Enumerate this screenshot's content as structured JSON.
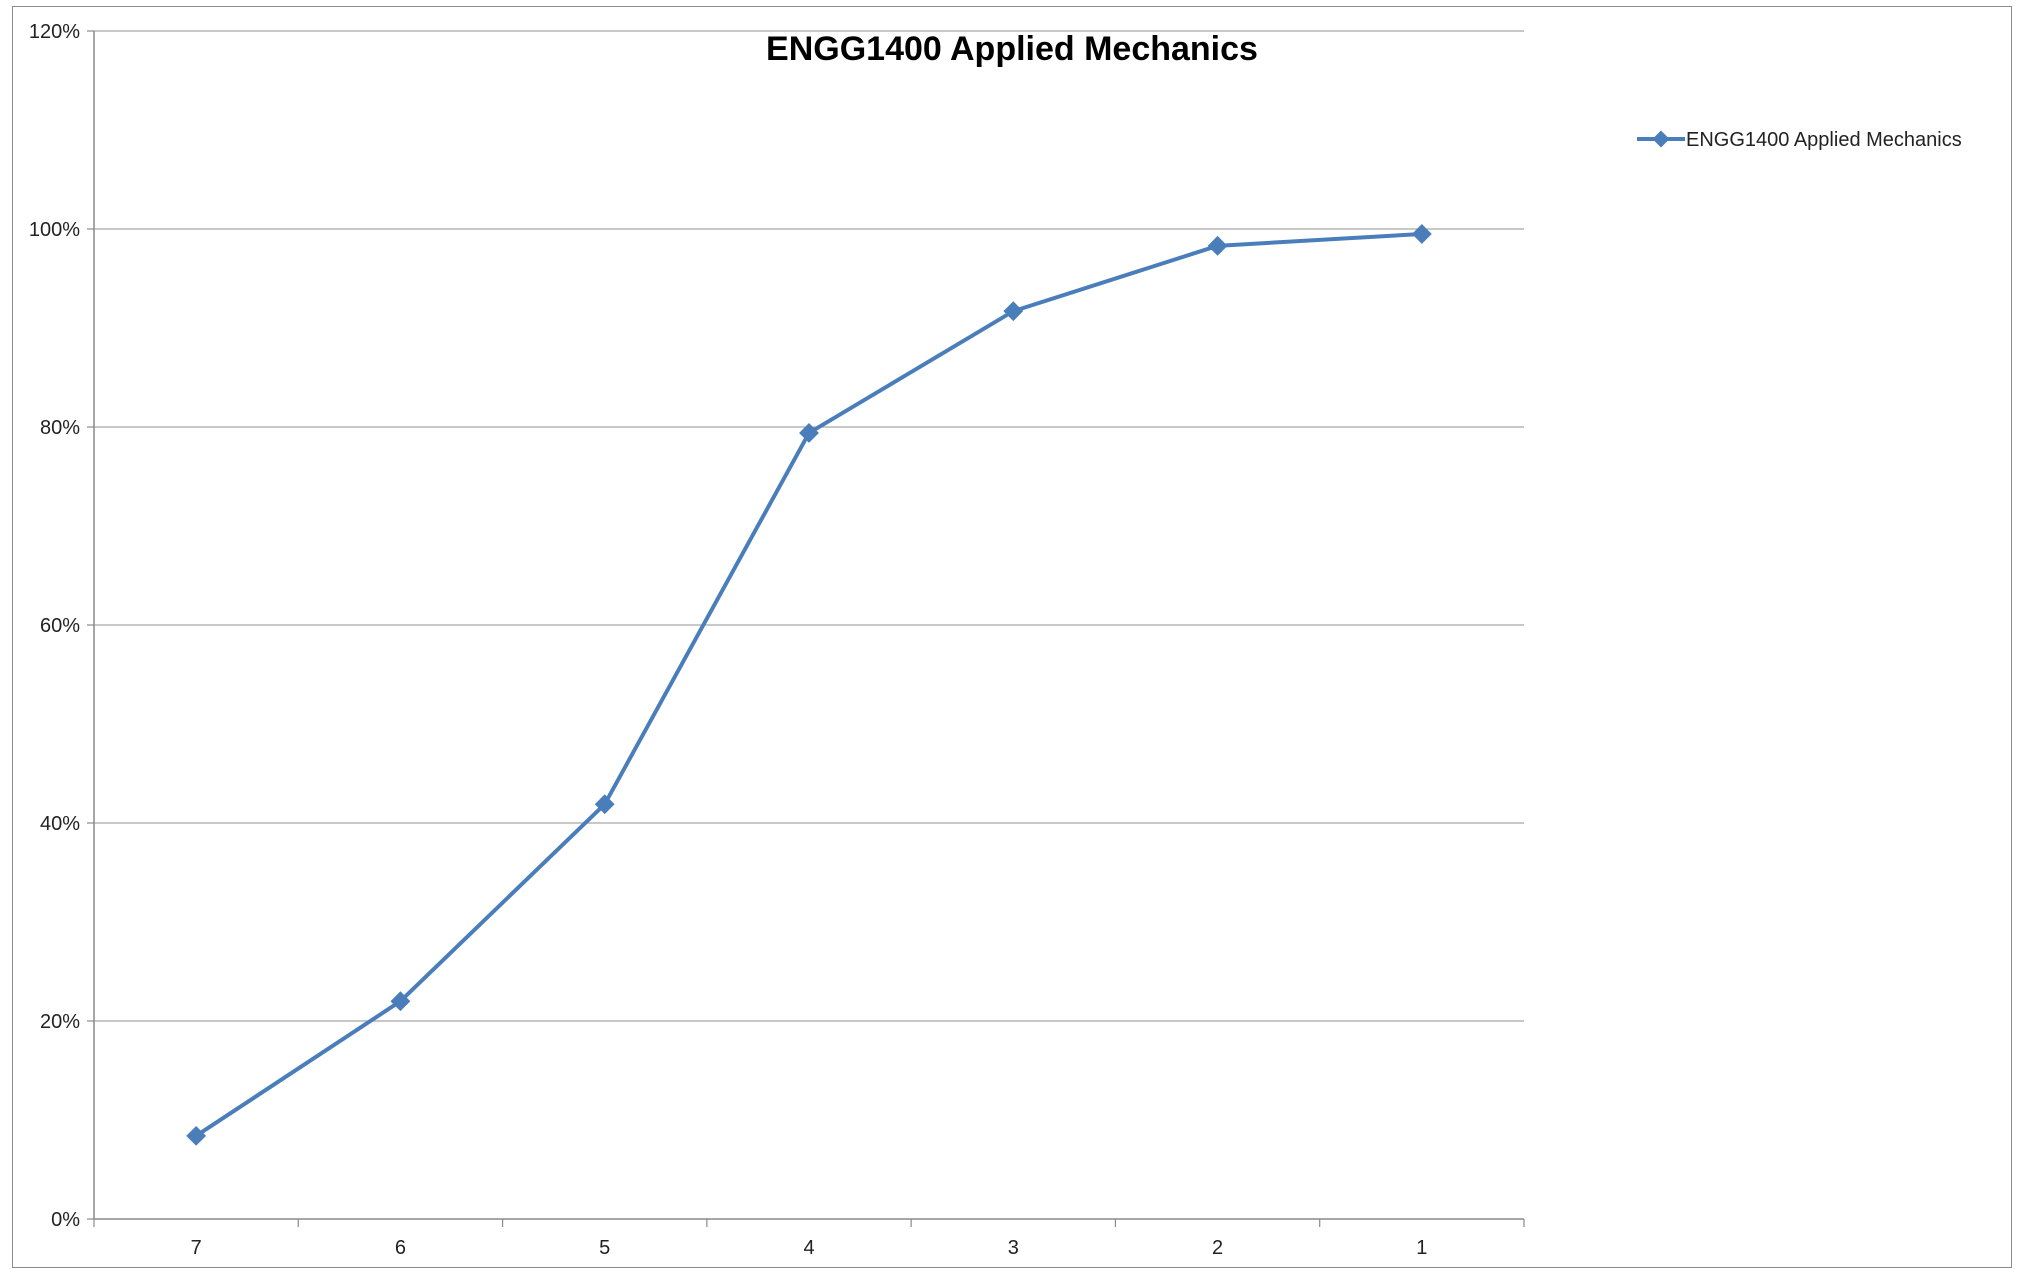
{
  "chart_data": {
    "type": "line",
    "title": "ENGG1400 Applied Mechanics",
    "xlabel": "",
    "ylabel": "",
    "categories": [
      "7",
      "6",
      "5",
      "4",
      "3",
      "2",
      "1"
    ],
    "series": [
      {
        "name": "ENGG1400 Applied Mechanics",
        "values": [
          0.084,
          0.22,
          0.419,
          0.794,
          0.917,
          0.983,
          0.995
        ],
        "color": "#4a7ebb",
        "marker": "diamond"
      }
    ],
    "ylim": [
      0,
      1.2
    ],
    "yticks": [
      0,
      0.2,
      0.4,
      0.6,
      0.8,
      1.0,
      1.2
    ],
    "ytick_labels": [
      "0%",
      "20%",
      "40%",
      "60%",
      "80%",
      "100%",
      "120%"
    ],
    "grid": "horizontal",
    "legend": "right"
  }
}
